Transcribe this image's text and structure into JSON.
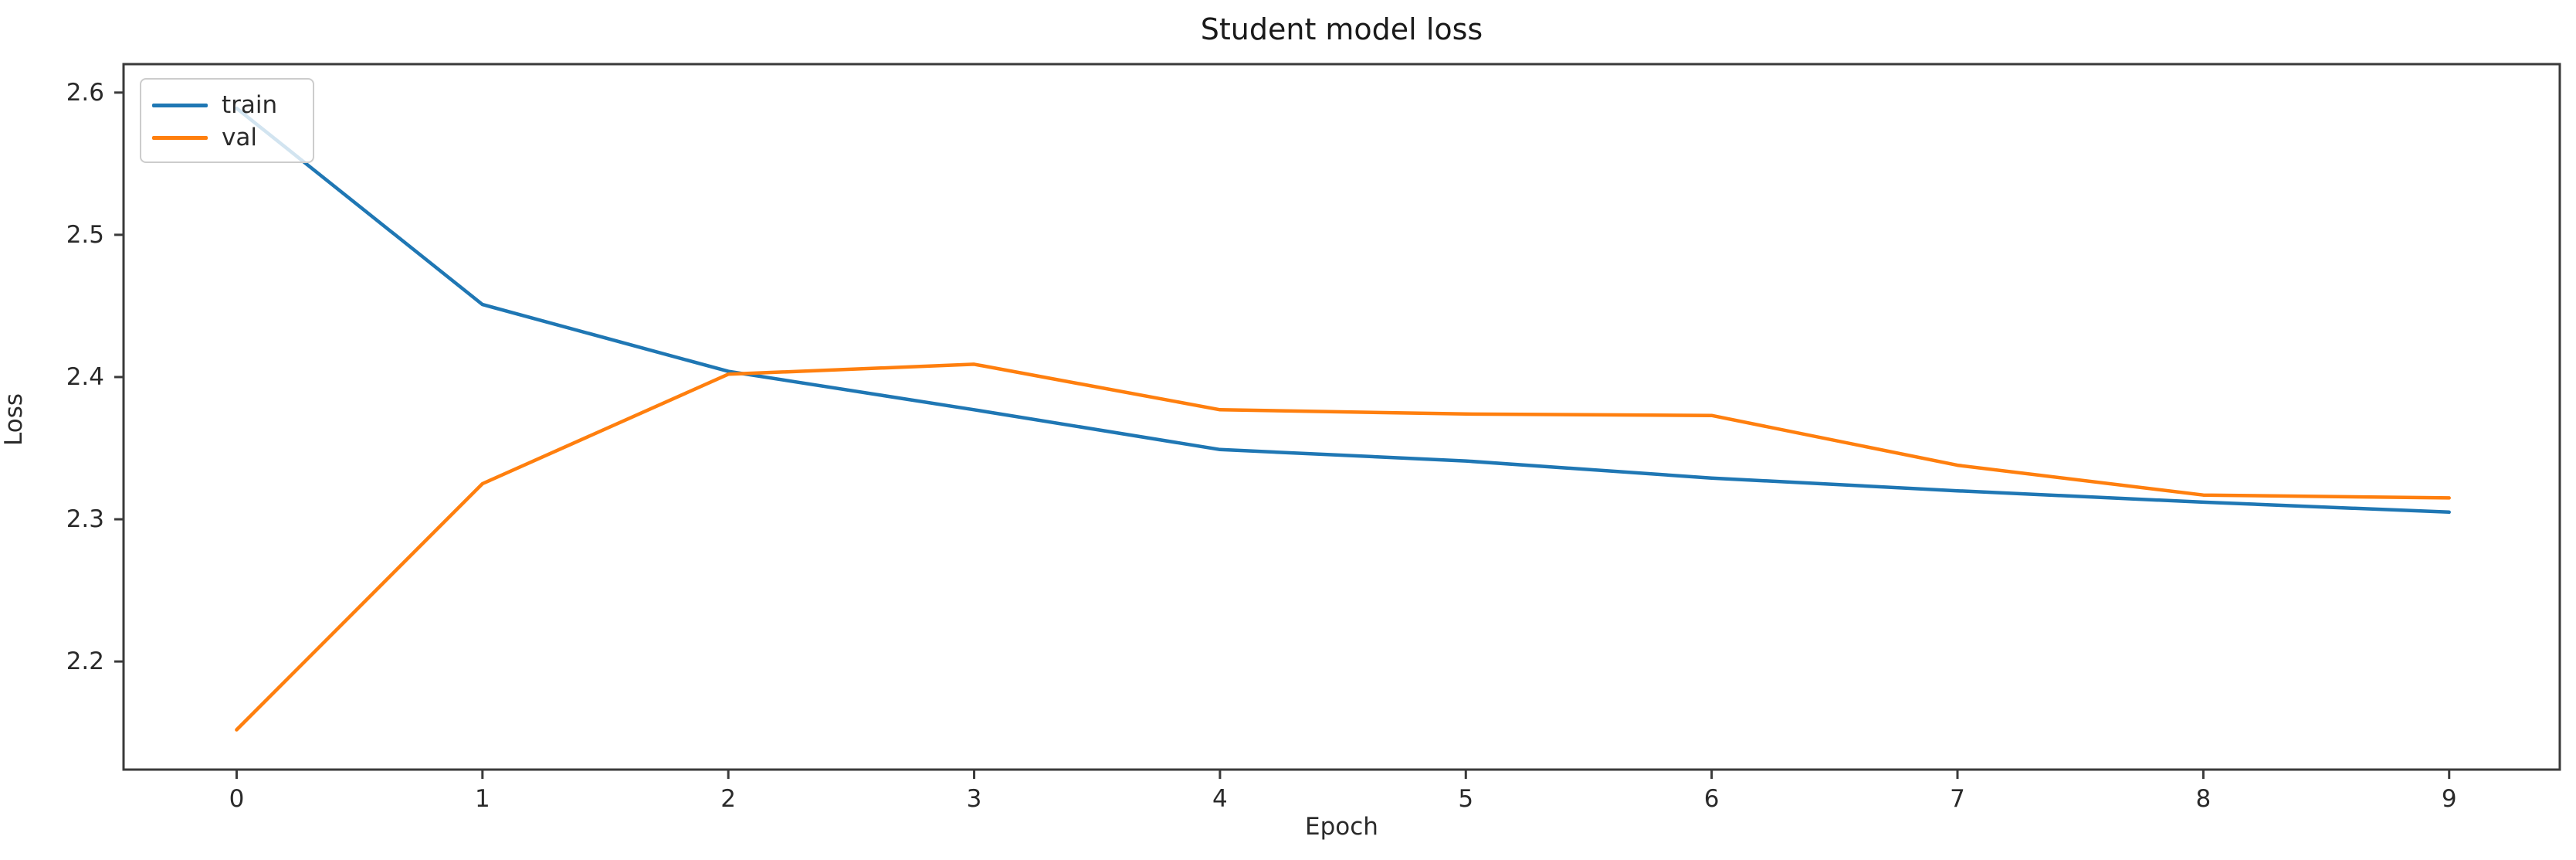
{
  "figure": {
    "title": "Student model loss",
    "xlabel": "Epoch",
    "ylabel": "Loss",
    "background_color": "#ffffff",
    "spine_color": "#3a3a3a",
    "text_color": "#2a2a2a"
  },
  "legend": {
    "items": [
      {
        "label": "train",
        "color": "#1f77b4"
      },
      {
        "label": "val",
        "color": "#ff7f0e"
      }
    ]
  },
  "chart_data": {
    "type": "line",
    "title": "Student model loss",
    "xlabel": "Epoch",
    "ylabel": "Loss",
    "x": [
      0,
      1,
      2,
      3,
      4,
      5,
      6,
      7,
      8,
      9
    ],
    "series": [
      {
        "name": "train",
        "color": "#1f77b4",
        "values": [
          2.589,
          2.451,
          2.404,
          2.377,
          2.349,
          2.341,
          2.329,
          2.32,
          2.312,
          2.305
        ]
      },
      {
        "name": "val",
        "color": "#ff7f0e",
        "values": [
          2.152,
          2.325,
          2.402,
          2.409,
          2.377,
          2.374,
          2.373,
          2.338,
          2.317,
          2.315
        ]
      }
    ],
    "x_ticks": [
      0,
      1,
      2,
      3,
      4,
      5,
      6,
      7,
      8,
      9
    ],
    "y_ticks": [
      2.2,
      2.3,
      2.4,
      2.5,
      2.6
    ],
    "xlim": [
      -0.46,
      9.45
    ],
    "ylim": [
      2.124,
      2.62
    ],
    "grid": false,
    "legend_position": "upper left",
    "line_width": 4.5
  }
}
